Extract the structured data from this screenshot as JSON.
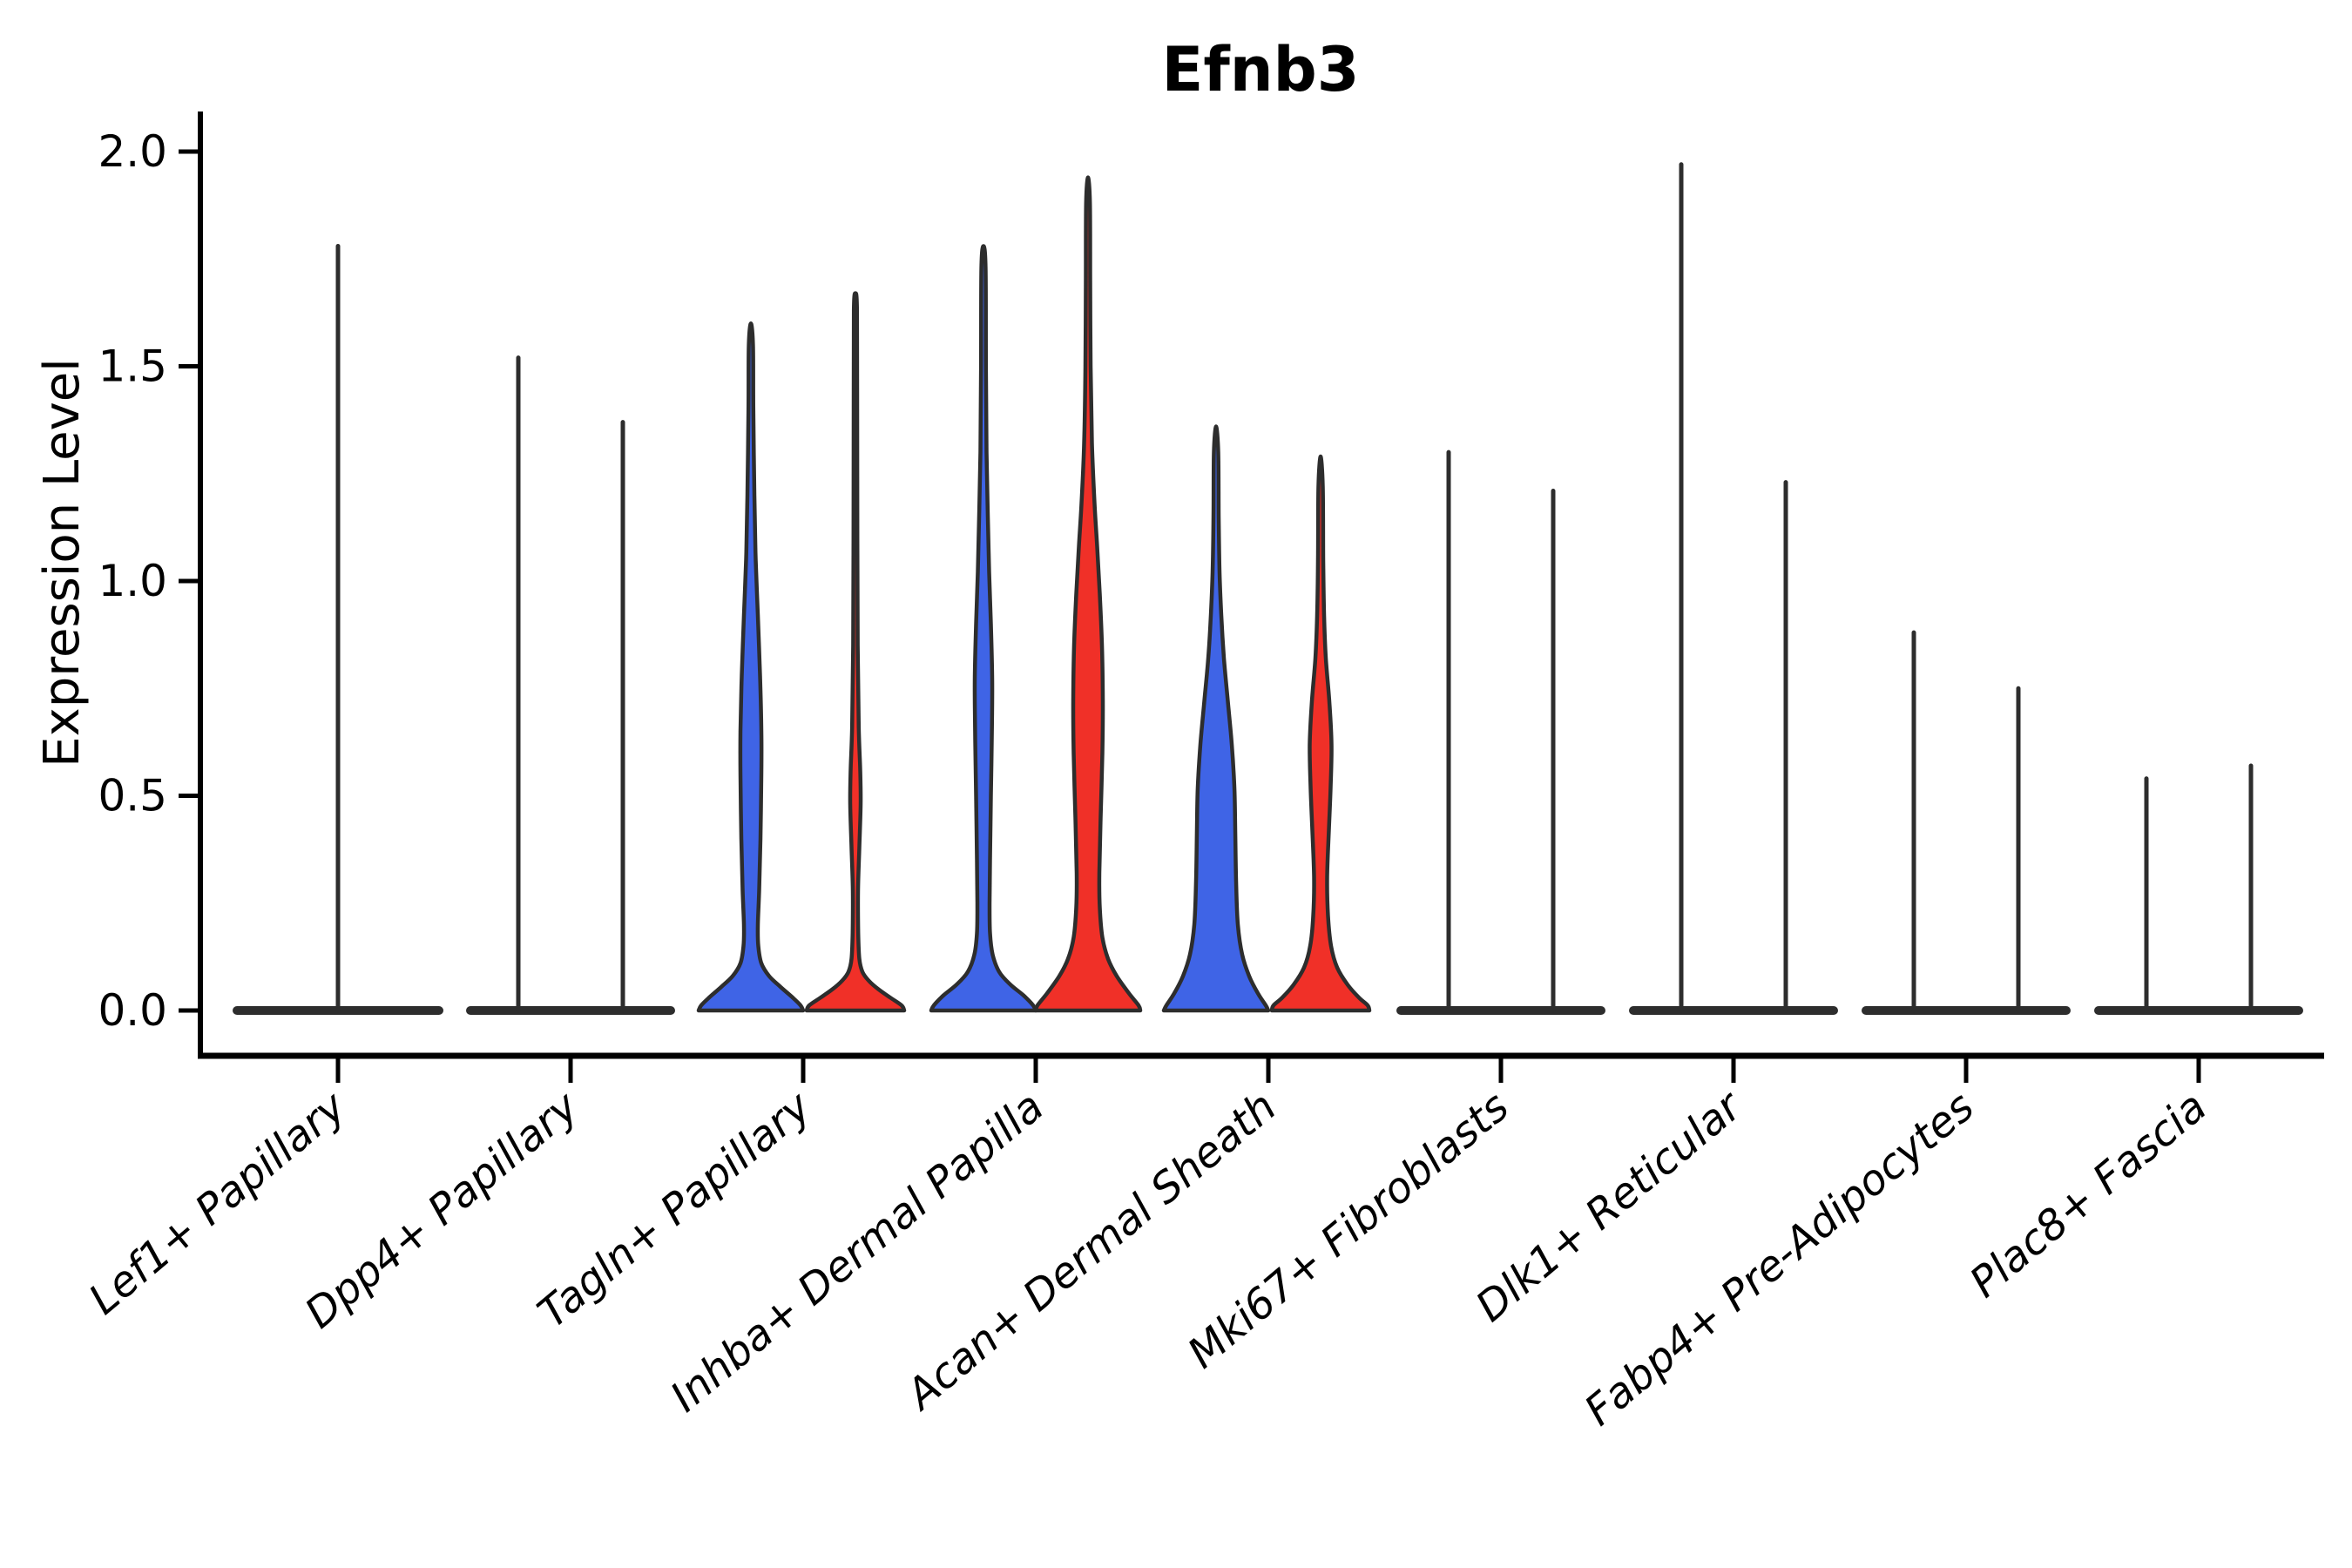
{
  "chart_data": {
    "type": "violin",
    "title": "Efnb3",
    "ylabel": "Expression Level",
    "xlabel": "",
    "ylim": [
      0.0,
      2.05
    ],
    "grid": false,
    "legend": "none",
    "yticks": [
      {
        "label": "0.0",
        "value": 0.0
      },
      {
        "label": "0.5",
        "value": 0.5
      },
      {
        "label": "1.0",
        "value": 1.0
      },
      {
        "label": "1.5",
        "value": 1.5
      },
      {
        "label": "2.0",
        "value": 2.0
      }
    ],
    "colors": {
      "blue_fill": "#3F64E6",
      "red_fill": "#F03028",
      "edge": "#2d2d2d",
      "axis": "#000000"
    },
    "categories": [
      {
        "label": "Lef1+ Papillary",
        "violins": [
          {
            "kind": "spike",
            "group": "single",
            "offset": 0,
            "max": 1.78
          }
        ]
      },
      {
        "label": "Dpp4+ Papillary",
        "violins": [
          {
            "kind": "spike",
            "group": "blue",
            "offset": -60,
            "max": 1.52
          },
          {
            "kind": "spike",
            "group": "red",
            "offset": 60,
            "max": 1.37
          }
        ]
      },
      {
        "label": "Tagln+ Papillary",
        "violins": [
          {
            "kind": "body",
            "group": "blue",
            "offset": -60,
            "max": 1.6,
            "profile": [
              [
                0,
                60
              ],
              [
                0.012,
                57
              ],
              [
                0.03,
                48
              ],
              [
                0.055,
                34
              ],
              [
                0.08,
                21
              ],
              [
                0.11,
                12
              ],
              [
                0.15,
                8.5
              ],
              [
                0.2,
                8
              ],
              [
                0.28,
                9.5
              ],
              [
                0.4,
                11
              ],
              [
                0.55,
                12
              ],
              [
                0.65,
                12
              ],
              [
                0.78,
                10.5
              ],
              [
                0.92,
                8
              ],
              [
                1.05,
                5.5
              ],
              [
                1.2,
                4
              ],
              [
                1.4,
                2.8
              ],
              [
                1.55,
                2.4
              ],
              [
                1.6,
                0
              ]
            ]
          },
          {
            "kind": "body",
            "group": "red",
            "offset": 60,
            "max": 1.67,
            "profile": [
              [
                0,
                56
              ],
              [
                0.012,
                53
              ],
              [
                0.03,
                40
              ],
              [
                0.05,
                26
              ],
              [
                0.07,
                15
              ],
              [
                0.09,
                8
              ],
              [
                0.12,
                4.5
              ],
              [
                0.18,
                3.2
              ],
              [
                0.28,
                3
              ],
              [
                0.38,
                4.5
              ],
              [
                0.48,
                6
              ],
              [
                0.56,
                5.5
              ],
              [
                0.66,
                3.8
              ],
              [
                0.85,
                2.6
              ],
              [
                1.1,
                2.2
              ],
              [
                1.4,
                2
              ],
              [
                1.63,
                1.8
              ],
              [
                1.67,
                0
              ]
            ]
          }
        ]
      },
      {
        "label": "Inhba+ Dermal Papilla",
        "violins": [
          {
            "kind": "body",
            "group": "blue",
            "offset": -60,
            "max": 1.78,
            "profile": [
              [
                0,
                60
              ],
              [
                0.012,
                57
              ],
              [
                0.035,
                46
              ],
              [
                0.06,
                31
              ],
              [
                0.09,
                18
              ],
              [
                0.13,
                10.5
              ],
              [
                0.18,
                7.5
              ],
              [
                0.25,
                7
              ],
              [
                0.35,
                7.5
              ],
              [
                0.5,
                8.5
              ],
              [
                0.63,
                9.5
              ],
              [
                0.77,
                10
              ],
              [
                0.9,
                8.5
              ],
              [
                1.02,
                6.5
              ],
              [
                1.15,
                5
              ],
              [
                1.3,
                3.5
              ],
              [
                1.5,
                2.8
              ],
              [
                1.73,
                2.4
              ],
              [
                1.78,
                0
              ]
            ]
          },
          {
            "kind": "body",
            "group": "red",
            "offset": 60,
            "max": 1.94,
            "profile": [
              [
                0,
                60
              ],
              [
                0.012,
                58
              ],
              [
                0.04,
                47
              ],
              [
                0.08,
                33
              ],
              [
                0.12,
                23
              ],
              [
                0.17,
                16.5
              ],
              [
                0.24,
                13.5
              ],
              [
                0.32,
                13
              ],
              [
                0.45,
                14.5
              ],
              [
                0.6,
                16.5
              ],
              [
                0.72,
                17
              ],
              [
                0.85,
                16
              ],
              [
                0.97,
                13.5
              ],
              [
                1.08,
                10.5
              ],
              [
                1.18,
                7.5
              ],
              [
                1.32,
                4.5
              ],
              [
                1.5,
                3
              ],
              [
                1.7,
                2.5
              ],
              [
                1.88,
                2.2
              ],
              [
                1.94,
                0
              ]
            ]
          }
        ]
      },
      {
        "label": "Acan+ Dermal Sheath",
        "violins": [
          {
            "kind": "body",
            "group": "blue",
            "offset": -60,
            "max": 1.36,
            "profile": [
              [
                0,
                60
              ],
              [
                0.012,
                57
              ],
              [
                0.04,
                48
              ],
              [
                0.08,
                38
              ],
              [
                0.13,
                30
              ],
              [
                0.2,
                25
              ],
              [
                0.3,
                23
              ],
              [
                0.42,
                22
              ],
              [
                0.52,
                21
              ],
              [
                0.62,
                18
              ],
              [
                0.72,
                13.5
              ],
              [
                0.82,
                9
              ],
              [
                0.92,
                6
              ],
              [
                1.02,
                4
              ],
              [
                1.15,
                3
              ],
              [
                1.3,
                2.5
              ],
              [
                1.36,
                0
              ]
            ]
          },
          {
            "kind": "body",
            "group": "red",
            "offset": 60,
            "max": 1.29,
            "profile": [
              [
                0,
                56
              ],
              [
                0.012,
                54
              ],
              [
                0.03,
                44
              ],
              [
                0.06,
                31
              ],
              [
                0.1,
                19
              ],
              [
                0.15,
                12
              ],
              [
                0.22,
                8.5
              ],
              [
                0.31,
                7.5
              ],
              [
                0.42,
                9.5
              ],
              [
                0.52,
                11.5
              ],
              [
                0.62,
                12.5
              ],
              [
                0.72,
                10
              ],
              [
                0.82,
                6
              ],
              [
                0.92,
                4
              ],
              [
                1.05,
                3
              ],
              [
                1.22,
                2.5
              ],
              [
                1.29,
                0
              ]
            ]
          }
        ]
      },
      {
        "label": "Mki67+ Fibroblasts",
        "violins": [
          {
            "kind": "spike",
            "group": "blue",
            "offset": -60,
            "max": 1.3
          },
          {
            "kind": "spike",
            "group": "red",
            "offset": 60,
            "max": 1.21
          }
        ]
      },
      {
        "label": "Dlk1+ Reticular",
        "violins": [
          {
            "kind": "spike",
            "group": "blue",
            "offset": -60,
            "max": 1.97
          },
          {
            "kind": "spike",
            "group": "red",
            "offset": 60,
            "max": 1.23
          }
        ]
      },
      {
        "label": "Fabp4+ Pre-Adipocytes",
        "violins": [
          {
            "kind": "spike",
            "group": "blue",
            "offset": -60,
            "max": 0.88
          },
          {
            "kind": "spike",
            "group": "red",
            "offset": 60,
            "max": 0.75
          }
        ]
      },
      {
        "label": "Plac8+ Fascia",
        "violins": [
          {
            "kind": "spike",
            "group": "blue",
            "offset": -60,
            "max": 0.54
          },
          {
            "kind": "spike",
            "group": "red",
            "offset": 60,
            "max": 0.57
          }
        ]
      }
    ]
  }
}
